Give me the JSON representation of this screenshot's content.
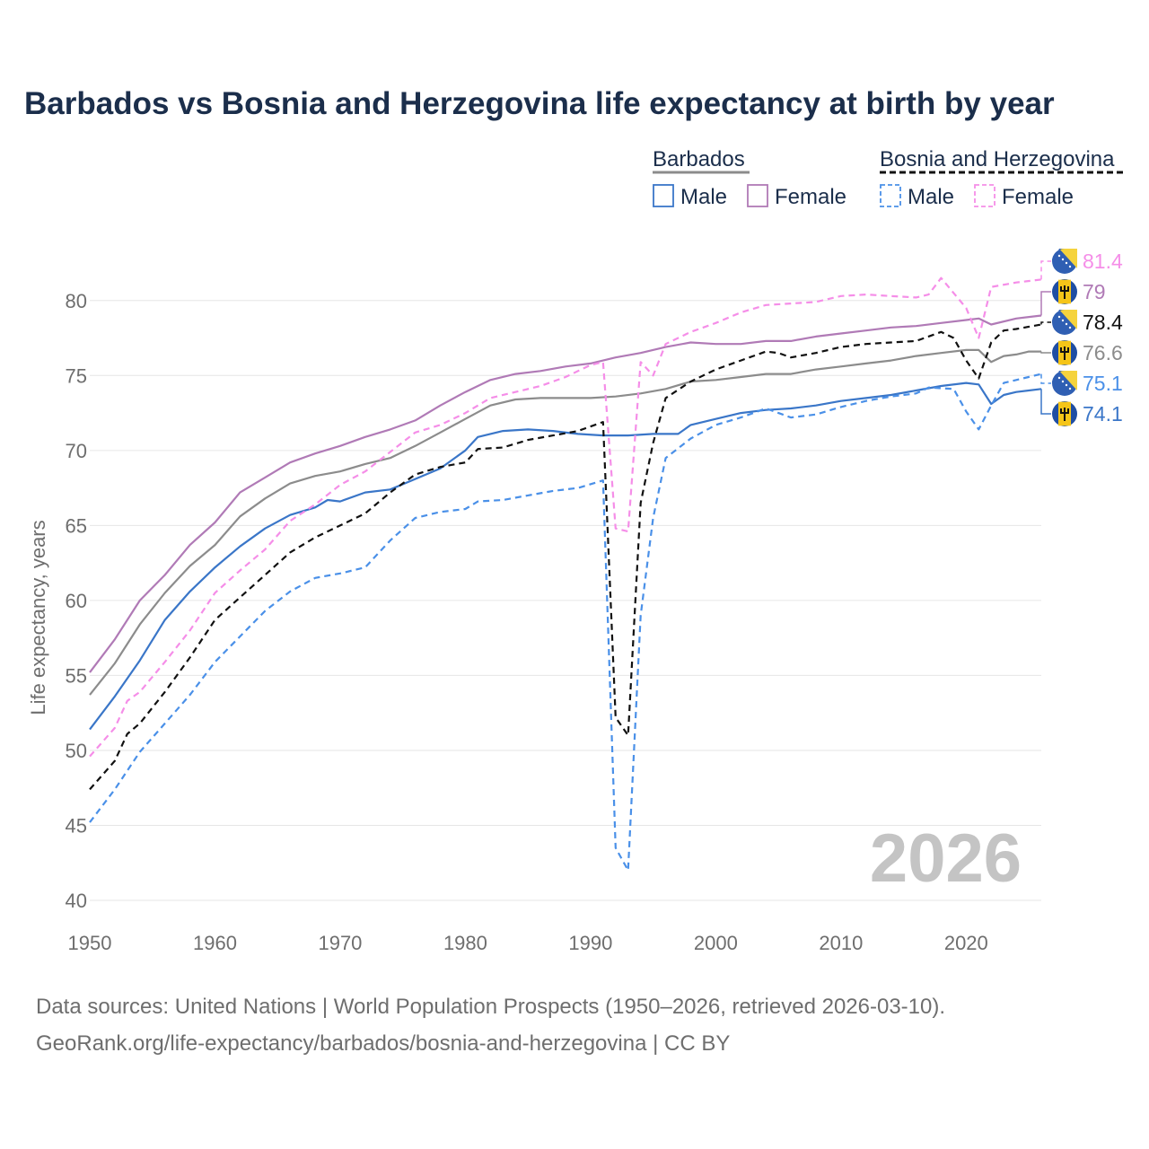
{
  "title": "Barbados vs Bosnia and Herzegovina life expectancy at birth by year",
  "sources": {
    "line1": "Data sources: United Nations | World Population Prospects (1950–2026, retrieved 2026-03-10).",
    "line2": "GeoRank.org/life-expectancy/barbados/bosnia-and-herzegovina | CC BY"
  },
  "colors": {
    "barbados_total": "#8c8c8c",
    "bih_total": "#111111",
    "male": "#3a76c8",
    "female": "#b07ab6",
    "bih_male": "#4a90e8",
    "bih_female": "#f58ee8",
    "barbados_flag_blue": "#1f4ea3",
    "barbados_flag_gold": "#f5c518",
    "bih_flag_blue": "#2f5fb3",
    "bih_flag_yellow": "#f5d33d"
  },
  "legend": {
    "groups": [
      {
        "label": "Barbados",
        "style": "solid",
        "items": [
          "Male",
          "Female"
        ]
      },
      {
        "label": "Bosnia and Herzegovina",
        "style": "dashed",
        "items": [
          "Male",
          "Female"
        ]
      }
    ]
  },
  "chart_data": {
    "type": "line",
    "title": "Barbados vs Bosnia and Herzegovina life expectancy at birth by year",
    "xlabel": "",
    "ylabel": "Life expectancy, years",
    "xlim": [
      1950,
      2026
    ],
    "ylim": [
      40,
      82.5
    ],
    "x_ticks": [
      1950,
      1960,
      1970,
      1980,
      1990,
      2000,
      2010,
      2020
    ],
    "y_ticks": [
      40,
      45,
      50,
      55,
      60,
      65,
      70,
      75,
      80
    ],
    "grid": true,
    "year_label": "2026",
    "series": [
      {
        "name": "Barbados Total",
        "country": "Barbados",
        "sex": "Total",
        "dashed": false,
        "color": "#8c8c8c",
        "end_value": "76.6",
        "flag": "barbados",
        "points": [
          [
            1950,
            53.7
          ],
          [
            1952,
            55.8
          ],
          [
            1954,
            58.4
          ],
          [
            1956,
            60.5
          ],
          [
            1958,
            62.3
          ],
          [
            1960,
            63.7
          ],
          [
            1962,
            65.6
          ],
          [
            1964,
            66.8
          ],
          [
            1966,
            67.8
          ],
          [
            1968,
            68.3
          ],
          [
            1970,
            68.6
          ],
          [
            1972,
            69.1
          ],
          [
            1974,
            69.5
          ],
          [
            1976,
            70.3
          ],
          [
            1978,
            71.2
          ],
          [
            1980,
            72.1
          ],
          [
            1982,
            73.0
          ],
          [
            1984,
            73.4
          ],
          [
            1986,
            73.5
          ],
          [
            1988,
            73.5
          ],
          [
            1990,
            73.5
          ],
          [
            1992,
            73.6
          ],
          [
            1994,
            73.8
          ],
          [
            1996,
            74.1
          ],
          [
            1998,
            74.6
          ],
          [
            2000,
            74.7
          ],
          [
            2002,
            74.9
          ],
          [
            2004,
            75.1
          ],
          [
            2006,
            75.1
          ],
          [
            2008,
            75.4
          ],
          [
            2010,
            75.6
          ],
          [
            2012,
            75.8
          ],
          [
            2014,
            76.0
          ],
          [
            2016,
            76.3
          ],
          [
            2018,
            76.5
          ],
          [
            2020,
            76.7
          ],
          [
            2021,
            76.7
          ],
          [
            2022,
            75.9
          ],
          [
            2023,
            76.3
          ],
          [
            2024,
            76.4
          ],
          [
            2025,
            76.6
          ],
          [
            2026,
            76.6
          ]
        ]
      },
      {
        "name": "Barbados Male",
        "country": "Barbados",
        "sex": "Male",
        "dashed": false,
        "color": "#3a76c8",
        "end_value": "74.1",
        "flag": "barbados",
        "points": [
          [
            1950,
            51.4
          ],
          [
            1952,
            53.6
          ],
          [
            1954,
            56.0
          ],
          [
            1956,
            58.7
          ],
          [
            1958,
            60.6
          ],
          [
            1960,
            62.2
          ],
          [
            1962,
            63.6
          ],
          [
            1964,
            64.8
          ],
          [
            1966,
            65.7
          ],
          [
            1968,
            66.2
          ],
          [
            1969,
            66.7
          ],
          [
            1970,
            66.6
          ],
          [
            1972,
            67.2
          ],
          [
            1974,
            67.4
          ],
          [
            1976,
            68.1
          ],
          [
            1978,
            68.8
          ],
          [
            1980,
            70.0
          ],
          [
            1981,
            70.9
          ],
          [
            1983,
            71.3
          ],
          [
            1985,
            71.4
          ],
          [
            1987,
            71.3
          ],
          [
            1989,
            71.1
          ],
          [
            1991,
            71.0
          ],
          [
            1993,
            71.0
          ],
          [
            1995,
            71.1
          ],
          [
            1997,
            71.1
          ],
          [
            1998,
            71.7
          ],
          [
            2000,
            72.1
          ],
          [
            2002,
            72.5
          ],
          [
            2004,
            72.7
          ],
          [
            2006,
            72.8
          ],
          [
            2008,
            73.0
          ],
          [
            2010,
            73.3
          ],
          [
            2012,
            73.5
          ],
          [
            2014,
            73.7
          ],
          [
            2016,
            74.0
          ],
          [
            2018,
            74.3
          ],
          [
            2020,
            74.5
          ],
          [
            2021,
            74.4
          ],
          [
            2022,
            73.1
          ],
          [
            2023,
            73.7
          ],
          [
            2024,
            73.9
          ],
          [
            2026,
            74.1
          ]
        ]
      },
      {
        "name": "Barbados Female",
        "country": "Barbados",
        "sex": "Female",
        "dashed": false,
        "color": "#b07ab6",
        "end_value": "79",
        "flag": "barbados",
        "points": [
          [
            1950,
            55.2
          ],
          [
            1952,
            57.4
          ],
          [
            1954,
            60.0
          ],
          [
            1956,
            61.7
          ],
          [
            1958,
            63.7
          ],
          [
            1960,
            65.2
          ],
          [
            1962,
            67.2
          ],
          [
            1964,
            68.2
          ],
          [
            1966,
            69.2
          ],
          [
            1968,
            69.8
          ],
          [
            1970,
            70.3
          ],
          [
            1972,
            70.9
          ],
          [
            1974,
            71.4
          ],
          [
            1976,
            72.0
          ],
          [
            1978,
            73.0
          ],
          [
            1980,
            73.9
          ],
          [
            1982,
            74.7
          ],
          [
            1984,
            75.1
          ],
          [
            1986,
            75.3
          ],
          [
            1988,
            75.6
          ],
          [
            1990,
            75.8
          ],
          [
            1992,
            76.2
          ],
          [
            1994,
            76.5
          ],
          [
            1996,
            76.9
          ],
          [
            1998,
            77.2
          ],
          [
            2000,
            77.1
          ],
          [
            2002,
            77.1
          ],
          [
            2004,
            77.3
          ],
          [
            2006,
            77.3
          ],
          [
            2008,
            77.6
          ],
          [
            2010,
            77.8
          ],
          [
            2012,
            78.0
          ],
          [
            2014,
            78.2
          ],
          [
            2016,
            78.3
          ],
          [
            2018,
            78.5
          ],
          [
            2020,
            78.7
          ],
          [
            2021,
            78.8
          ],
          [
            2022,
            78.4
          ],
          [
            2024,
            78.8
          ],
          [
            2026,
            79.0
          ]
        ]
      },
      {
        "name": "Bosnia and Herzegovina Total",
        "country": "Bosnia and Herzegovina",
        "sex": "Total",
        "dashed": true,
        "color": "#111111",
        "end_value": "78.4",
        "flag": "bih",
        "points": [
          [
            1950,
            47.4
          ],
          [
            1952,
            49.3
          ],
          [
            1953,
            51.1
          ],
          [
            1954,
            51.8
          ],
          [
            1956,
            53.9
          ],
          [
            1958,
            56.2
          ],
          [
            1960,
            58.7
          ],
          [
            1962,
            60.2
          ],
          [
            1964,
            61.7
          ],
          [
            1966,
            63.2
          ],
          [
            1968,
            64.2
          ],
          [
            1970,
            65.0
          ],
          [
            1972,
            65.8
          ],
          [
            1974,
            67.2
          ],
          [
            1976,
            68.4
          ],
          [
            1978,
            68.9
          ],
          [
            1980,
            69.2
          ],
          [
            1981,
            70.1
          ],
          [
            1983,
            70.2
          ],
          [
            1985,
            70.7
          ],
          [
            1987,
            71.0
          ],
          [
            1989,
            71.3
          ],
          [
            1991,
            71.9
          ],
          [
            1992,
            52.2
          ],
          [
            1993,
            51.0
          ],
          [
            1994,
            66.5
          ],
          [
            1995,
            70.5
          ],
          [
            1996,
            73.5
          ],
          [
            1998,
            74.6
          ],
          [
            2000,
            75.4
          ],
          [
            2002,
            76.0
          ],
          [
            2004,
            76.6
          ],
          [
            2005,
            76.5
          ],
          [
            2006,
            76.2
          ],
          [
            2008,
            76.5
          ],
          [
            2010,
            76.9
          ],
          [
            2012,
            77.1
          ],
          [
            2014,
            77.2
          ],
          [
            2016,
            77.3
          ],
          [
            2018,
            77.9
          ],
          [
            2019,
            77.5
          ],
          [
            2020,
            76.0
          ],
          [
            2021,
            74.8
          ],
          [
            2022,
            77.2
          ],
          [
            2023,
            78.0
          ],
          [
            2024,
            78.1
          ],
          [
            2026,
            78.4
          ]
        ]
      },
      {
        "name": "Bosnia and Herzegovina Male",
        "country": "Bosnia and Herzegovina",
        "sex": "Male",
        "dashed": true,
        "color": "#4a90e8",
        "end_value": "75.1",
        "flag": "bih",
        "points": [
          [
            1950,
            45.2
          ],
          [
            1952,
            47.4
          ],
          [
            1954,
            49.9
          ],
          [
            1956,
            51.8
          ],
          [
            1958,
            53.7
          ],
          [
            1960,
            55.9
          ],
          [
            1962,
            57.6
          ],
          [
            1964,
            59.3
          ],
          [
            1966,
            60.6
          ],
          [
            1968,
            61.5
          ],
          [
            1970,
            61.8
          ],
          [
            1972,
            62.2
          ],
          [
            1974,
            64.0
          ],
          [
            1976,
            65.5
          ],
          [
            1978,
            65.9
          ],
          [
            1980,
            66.1
          ],
          [
            1981,
            66.6
          ],
          [
            1983,
            66.7
          ],
          [
            1985,
            67.0
          ],
          [
            1987,
            67.3
          ],
          [
            1989,
            67.5
          ],
          [
            1991,
            68.0
          ],
          [
            1992,
            43.5
          ],
          [
            1993,
            42.0
          ],
          [
            1994,
            59.0
          ],
          [
            1995,
            65.5
          ],
          [
            1996,
            69.5
          ],
          [
            1998,
            70.8
          ],
          [
            2000,
            71.7
          ],
          [
            2002,
            72.2
          ],
          [
            2004,
            72.8
          ],
          [
            2006,
            72.2
          ],
          [
            2008,
            72.4
          ],
          [
            2010,
            72.9
          ],
          [
            2012,
            73.3
          ],
          [
            2014,
            73.6
          ],
          [
            2016,
            73.8
          ],
          [
            2017,
            74.2
          ],
          [
            2019,
            74.1
          ],
          [
            2020,
            72.6
          ],
          [
            2021,
            71.4
          ],
          [
            2022,
            73.0
          ],
          [
            2023,
            74.5
          ],
          [
            2024,
            74.7
          ],
          [
            2026,
            75.1
          ]
        ]
      },
      {
        "name": "Bosnia and Herzegovina Female",
        "country": "Bosnia and Herzegovina",
        "sex": "Female",
        "dashed": true,
        "color": "#f58ee8",
        "end_value": "81.4",
        "flag": "bih",
        "points": [
          [
            1950,
            49.6
          ],
          [
            1952,
            51.5
          ],
          [
            1953,
            53.3
          ],
          [
            1954,
            53.9
          ],
          [
            1956,
            55.9
          ],
          [
            1958,
            58.0
          ],
          [
            1960,
            60.5
          ],
          [
            1962,
            62.0
          ],
          [
            1964,
            63.4
          ],
          [
            1966,
            65.3
          ],
          [
            1968,
            66.4
          ],
          [
            1970,
            67.7
          ],
          [
            1972,
            68.6
          ],
          [
            1974,
            69.9
          ],
          [
            1976,
            71.2
          ],
          [
            1978,
            71.7
          ],
          [
            1980,
            72.5
          ],
          [
            1982,
            73.5
          ],
          [
            1984,
            73.9
          ],
          [
            1986,
            74.3
          ],
          [
            1988,
            74.9
          ],
          [
            1990,
            75.7
          ],
          [
            1991,
            75.9
          ],
          [
            1992,
            64.8
          ],
          [
            1993,
            64.6
          ],
          [
            1994,
            75.9
          ],
          [
            1995,
            75.0
          ],
          [
            1996,
            77.1
          ],
          [
            1998,
            77.9
          ],
          [
            2000,
            78.5
          ],
          [
            2002,
            79.2
          ],
          [
            2004,
            79.7
          ],
          [
            2006,
            79.8
          ],
          [
            2008,
            79.9
          ],
          [
            2010,
            80.3
          ],
          [
            2012,
            80.4
          ],
          [
            2014,
            80.3
          ],
          [
            2016,
            80.2
          ],
          [
            2017,
            80.4
          ],
          [
            2018,
            81.5
          ],
          [
            2020,
            79.5
          ],
          [
            2021,
            77.5
          ],
          [
            2022,
            80.9
          ],
          [
            2024,
            81.2
          ],
          [
            2026,
            81.4
          ]
        ]
      }
    ]
  }
}
